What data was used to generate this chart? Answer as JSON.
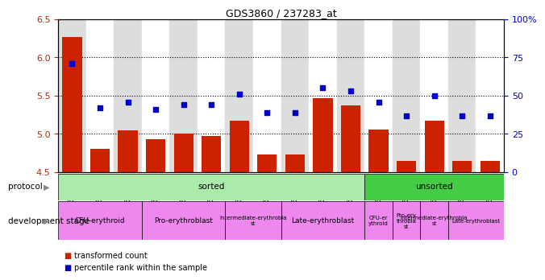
{
  "title": "GDS3860 / 237283_at",
  "samples": [
    "GSM559689",
    "GSM559690",
    "GSM559691",
    "GSM559692",
    "GSM559693",
    "GSM559694",
    "GSM559695",
    "GSM559696",
    "GSM559697",
    "GSM559698",
    "GSM559699",
    "GSM559700",
    "GSM559701",
    "GSM559702",
    "GSM559703",
    "GSM559704"
  ],
  "bar_values": [
    6.27,
    4.8,
    5.05,
    4.93,
    5.0,
    4.97,
    5.17,
    4.73,
    4.73,
    5.47,
    5.37,
    5.06,
    4.65,
    5.17,
    4.65,
    4.65
  ],
  "dot_values": [
    71,
    42,
    46,
    41,
    44,
    44,
    51,
    39,
    39,
    55,
    53,
    46,
    37,
    50,
    37,
    37
  ],
  "ylim_left": [
    4.5,
    6.5
  ],
  "ylim_right": [
    0,
    100
  ],
  "yticks_left": [
    4.5,
    5.0,
    5.5,
    6.0,
    6.5
  ],
  "yticks_right": [
    0,
    25,
    50,
    75,
    100
  ],
  "ytick_labels_right": [
    "0",
    "25",
    "50",
    "75",
    "100%"
  ],
  "bar_color": "#cc2200",
  "dot_color": "#0000cc",
  "bg_color": "#ffffff",
  "col_colors": [
    "#dddddd",
    "#ffffff"
  ],
  "protocol_row": {
    "label": "protocol",
    "segments": [
      {
        "text": "sorted",
        "start": 0,
        "end": 11,
        "color": "#aaeaaa"
      },
      {
        "text": "unsorted",
        "start": 11,
        "end": 16,
        "color": "#44cc44"
      }
    ]
  },
  "dev_stage_row": {
    "label": "development stage",
    "segments": [
      {
        "text": "CFU-erythroid",
        "start": 0,
        "end": 3,
        "color": "#ee88ee"
      },
      {
        "text": "Pro-erythroblast",
        "start": 3,
        "end": 6,
        "color": "#ee88ee"
      },
      {
        "text": "Intermediate-erythroblast",
        "start": 6,
        "end": 8,
        "color": "#ee88ee"
      },
      {
        "text": "Late-erythroblast",
        "start": 8,
        "end": 11,
        "color": "#ee88ee"
      },
      {
        "text": "CFU-erythroid",
        "start": 11,
        "end": 12,
        "color": "#ee88ee"
      },
      {
        "text": "Pro-erythroblast",
        "start": 12,
        "end": 13,
        "color": "#ee88ee"
      },
      {
        "text": "Intermediate-erythroblast",
        "start": 13,
        "end": 14,
        "color": "#ee88ee"
      },
      {
        "text": "Late-erythroblast",
        "start": 14,
        "end": 16,
        "color": "#ee88ee"
      }
    ]
  },
  "legend_items": [
    {
      "label": "transformed count",
      "color": "#cc2200"
    },
    {
      "label": "percentile rank within the sample",
      "color": "#0000cc"
    }
  ]
}
